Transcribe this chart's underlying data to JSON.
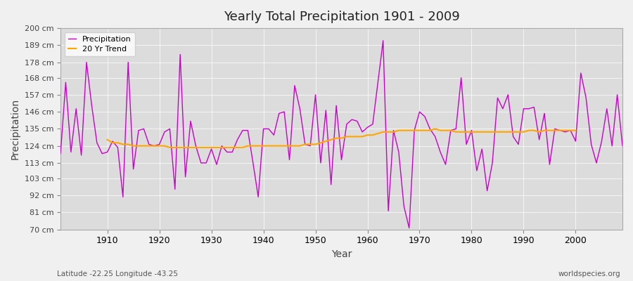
{
  "title": "Yearly Total Precipitation 1901 - 2009",
  "xlabel": "Year",
  "ylabel": "Precipitation",
  "footnote_left": "Latitude -22.25 Longitude -43.25",
  "footnote_right": "worldspecies.org",
  "bg_color": "#f0f0f0",
  "plot_bg_color": "#dcdcdc",
  "precip_color": "#cc00cc",
  "trend_color": "#ffa500",
  "ylim": [
    70,
    200
  ],
  "yticks": [
    70,
    81,
    92,
    103,
    113,
    124,
    135,
    146,
    157,
    168,
    178,
    189,
    200
  ],
  "ytick_labels": [
    "70 cm",
    "81 cm",
    "92 cm",
    "103 cm",
    "113 cm",
    "124 cm",
    "135 cm",
    "146 cm",
    "157 cm",
    "168 cm",
    "178 cm",
    "189 cm",
    "200 cm"
  ],
  "years": [
    1901,
    1902,
    1903,
    1904,
    1905,
    1906,
    1907,
    1908,
    1909,
    1910,
    1911,
    1912,
    1913,
    1914,
    1915,
    1916,
    1917,
    1918,
    1919,
    1920,
    1921,
    1922,
    1923,
    1924,
    1925,
    1926,
    1927,
    1928,
    1929,
    1930,
    1931,
    1932,
    1933,
    1934,
    1935,
    1936,
    1937,
    1938,
    1939,
    1940,
    1941,
    1942,
    1943,
    1944,
    1945,
    1946,
    1947,
    1948,
    1949,
    1950,
    1951,
    1952,
    1953,
    1954,
    1955,
    1956,
    1957,
    1958,
    1959,
    1960,
    1961,
    1962,
    1963,
    1964,
    1965,
    1966,
    1967,
    1968,
    1969,
    1970,
    1971,
    1972,
    1973,
    1974,
    1975,
    1976,
    1977,
    1978,
    1979,
    1980,
    1981,
    1982,
    1983,
    1984,
    1985,
    1986,
    1987,
    1988,
    1989,
    1990,
    1991,
    1992,
    1993,
    1994,
    1995,
    1996,
    1997,
    1998,
    1999,
    2000,
    2001,
    2002,
    2003,
    2004,
    2005,
    2006,
    2007,
    2008,
    2009
  ],
  "precip": [
    119,
    165,
    120,
    148,
    118,
    178,
    150,
    126,
    119,
    120,
    127,
    123,
    91,
    178,
    109,
    134,
    135,
    125,
    124,
    125,
    133,
    135,
    96,
    183,
    104,
    140,
    124,
    113,
    113,
    122,
    112,
    124,
    120,
    120,
    128,
    134,
    134,
    113,
    91,
    135,
    135,
    131,
    145,
    146,
    115,
    163,
    148,
    125,
    124,
    157,
    113,
    147,
    99,
    150,
    115,
    138,
    141,
    140,
    133,
    136,
    138,
    165,
    192,
    82,
    134,
    120,
    85,
    71,
    134,
    146,
    143,
    135,
    130,
    120,
    112,
    134,
    135,
    168,
    125,
    134,
    108,
    122,
    95,
    113,
    155,
    148,
    157,
    130,
    125,
    148,
    148,
    149,
    128,
    145,
    112,
    135,
    134,
    133,
    134,
    127,
    171,
    155,
    125,
    113,
    127,
    148,
    124,
    157,
    124
  ],
  "trend_years": [
    1910,
    1911,
    1912,
    1913,
    1914,
    1915,
    1916,
    1917,
    1918,
    1919,
    1920,
    1921,
    1922,
    1923,
    1924,
    1925,
    1926,
    1927,
    1928,
    1929,
    1930,
    1931,
    1932,
    1933,
    1934,
    1935,
    1936,
    1937,
    1938,
    1939,
    1940,
    1941,
    1942,
    1943,
    1944,
    1945,
    1946,
    1947,
    1948,
    1949,
    1950,
    1951,
    1952,
    1953,
    1954,
    1955,
    1956,
    1957,
    1958,
    1959,
    1960,
    1961,
    1962,
    1963,
    1964,
    1965,
    1966,
    1967,
    1968,
    1969,
    1970,
    1971,
    1972,
    1973,
    1974,
    1975,
    1976,
    1977,
    1978,
    1979,
    1980,
    1981,
    1982,
    1983,
    1984,
    1985,
    1986,
    1987,
    1988,
    1989,
    1990,
    1991,
    1992,
    1993,
    1994,
    1995,
    1996,
    1997,
    1998,
    1999,
    2000
  ],
  "trend": [
    128,
    126,
    126,
    125,
    125,
    124,
    124,
    124,
    124,
    124,
    124,
    124,
    123,
    123,
    123,
    123,
    123,
    123,
    123,
    123,
    123,
    123,
    123,
    123,
    123,
    123,
    123,
    124,
    124,
    124,
    124,
    124,
    124,
    124,
    124,
    124,
    124,
    124,
    125,
    125,
    125,
    126,
    127,
    128,
    129,
    129,
    130,
    130,
    130,
    130,
    131,
    131,
    132,
    133,
    133,
    133,
    134,
    134,
    134,
    134,
    134,
    134,
    134,
    135,
    134,
    134,
    134,
    133,
    133,
    133,
    133,
    133,
    133,
    133,
    133,
    133,
    133,
    133,
    133,
    133,
    133,
    134,
    134,
    133,
    134,
    134,
    134,
    134,
    134,
    134,
    134
  ],
  "xticks": [
    1910,
    1920,
    1930,
    1940,
    1950,
    1960,
    1970,
    1980,
    1990,
    2000
  ],
  "xlim": [
    1901,
    2009
  ]
}
